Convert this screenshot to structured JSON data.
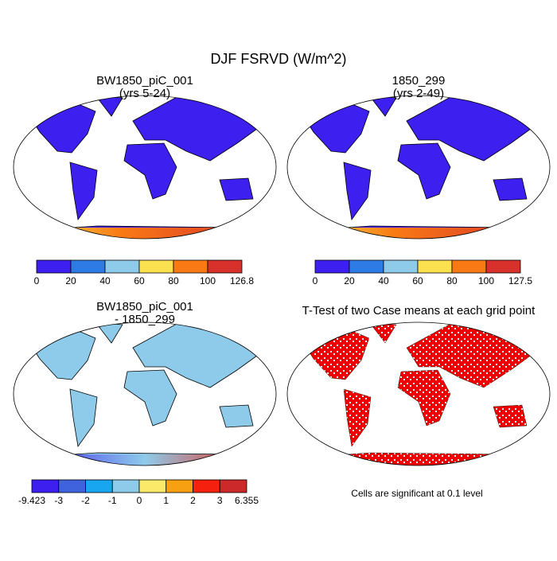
{
  "title": "DJF FSRVD (W/m^2)",
  "panels": [
    {
      "title": [
        "BW1850_piC_001",
        "(yrs 5-24)"
      ],
      "colorbar": {
        "colors": [
          "#3d1ff0",
          "#2e7be6",
          "#8ecbea",
          "#fbe150",
          "#f97a14",
          "#d8312c"
        ],
        "labels": [
          "0",
          "20",
          "40",
          "60",
          "80",
          "100",
          "126.8"
        ]
      }
    },
    {
      "title": [
        "1850_299",
        "(yrs 2-49)"
      ],
      "colorbar": {
        "colors": [
          "#3d1ff0",
          "#2e7be6",
          "#8ecbea",
          "#fbe150",
          "#f97a14",
          "#d8312c"
        ],
        "labels": [
          "0",
          "20",
          "40",
          "60",
          "80",
          "100",
          "127.5"
        ]
      }
    },
    {
      "title": [
        "BW1850_piC_001",
        "- 1850_299"
      ],
      "colorbar": {
        "colors": [
          "#3d1ff0",
          "#3f63dc",
          "#19a6f0",
          "#8ecbea",
          "#fbe96a",
          "#f7a012",
          "#f5200e",
          "#cc2a2a"
        ],
        "labels": [
          "-9.423",
          "-3",
          "-2",
          "-1",
          "0",
          "1",
          "2",
          "3",
          "6.355"
        ]
      }
    },
    {
      "title": [
        "T-Test of two Case means at each grid point"
      ]
    }
  ],
  "footnote": "Cells are significant at 0.1 level"
}
